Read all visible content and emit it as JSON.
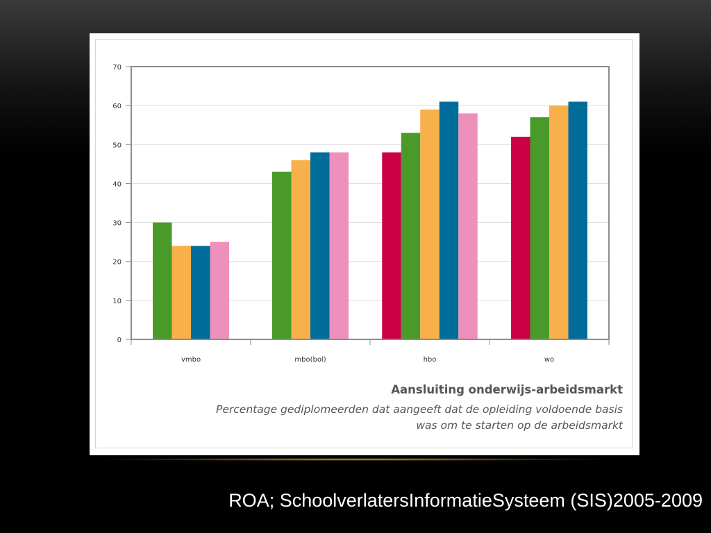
{
  "chart_data": {
    "type": "bar",
    "title": "Aansluiting onderwijs-arbeidsmarkt",
    "subtitle_line1": "Percentage gediplomeerden dat aangeeft dat de opleiding voldoende basis",
    "subtitle_line2": "was om te starten op de arbeidsmarkt",
    "xlabel": "",
    "ylabel": "",
    "ylim": [
      0,
      70
    ],
    "yticks": [
      0,
      10,
      20,
      30,
      40,
      50,
      60,
      70
    ],
    "grid": true,
    "legend": "none",
    "categories": [
      "vmbo",
      "mbo(bol)",
      "hbo",
      "wo"
    ],
    "series": [
      {
        "color": "#cc0044",
        "values": [
          null,
          null,
          48,
          52
        ]
      },
      {
        "color": "#4a9a2a",
        "values": [
          30,
          43,
          53,
          57
        ]
      },
      {
        "color": "#f8b04a",
        "values": [
          24,
          46,
          59,
          60
        ]
      },
      {
        "color": "#006c9a",
        "values": [
          24,
          48,
          61,
          61
        ]
      },
      {
        "color": "#ee90bc",
        "values": [
          25,
          48,
          58,
          null
        ]
      }
    ]
  },
  "source": "ROA; SchoolverlatersInformatieSysteem (SIS)2005-2009"
}
